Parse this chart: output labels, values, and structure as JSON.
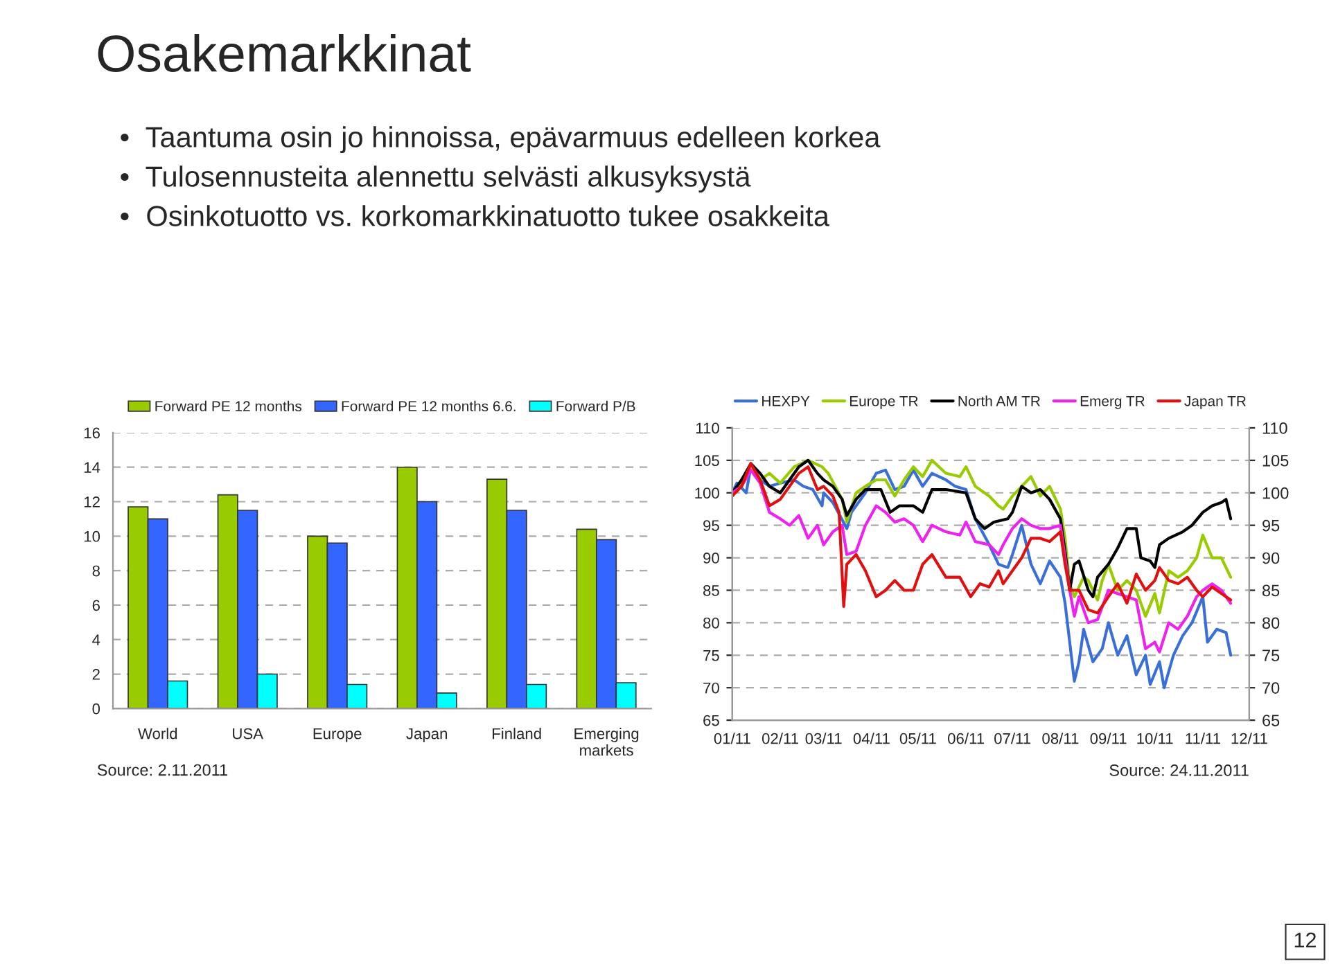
{
  "chart_data": [
    {
      "type": "bar",
      "title": "Osakemarkkinat",
      "subtitle": "•  Taantuma osin jo hinnoissa, epävarmuus edelleen korkea\n•  Tulosennusteita alennettu selvästi alkusyksystä\n•  Osinkotuotto vs. korkomarkkinatuotto tukee osakkeita",
      "categories": [
        "World",
        "USA",
        "Europe",
        "Japan",
        "Finland",
        "Emerging\nmarkets"
      ],
      "series": [
        {
          "name": "Forward PE 12 months",
          "color": "#99cc00",
          "values": [
            11.7,
            12.4,
            10.0,
            14.0,
            13.3,
            10.4
          ]
        },
        {
          "name": "Forward PE 12 months 6.6.",
          "color": "#3366ff",
          "values": [
            11.0,
            11.5,
            9.6,
            12.0,
            11.5,
            9.8
          ]
        },
        {
          "name": "Forward P/B",
          "color": "#00ffff",
          "values": [
            1.6,
            2.0,
            1.4,
            0.9,
            1.4,
            1.5
          ]
        }
      ],
      "ylim": [
        0,
        16
      ],
      "yticks": [
        0,
        2,
        4,
        6,
        8,
        10,
        12,
        14,
        16
      ],
      "grid": "y",
      "legend": "top",
      "annotations": [
        "Source: 2.11.2011"
      ]
    },
    {
      "type": "line",
      "series": [
        {
          "name": "HEXPY",
          "color": "#3a6fd8",
          "x": [
            "2011-01-01",
            "2011-01-04",
            "2011-01-10",
            "2011-01-13",
            "2011-01-19",
            "2011-01-25",
            "2011-02-01",
            "2011-02-10",
            "2011-02-16",
            "2011-02-22",
            "2011-02-28",
            "2011-03-01",
            "2011-03-07",
            "2011-03-16",
            "2011-03-19",
            "2011-03-28",
            "2011-04-04",
            "2011-04-10",
            "2011-04-16",
            "2011-04-22",
            "2011-04-28",
            "2011-05-04",
            "2011-05-10",
            "2011-05-19",
            "2011-05-25",
            "2011-06-01",
            "2011-06-07",
            "2011-06-16",
            "2011-06-22",
            "2011-06-28",
            "2011-07-01",
            "2011-07-07",
            "2011-07-13",
            "2011-07-19",
            "2011-07-25",
            "2011-08-01",
            "2011-08-04",
            "2011-08-07",
            "2011-08-10",
            "2011-08-13",
            "2011-08-16",
            "2011-08-22",
            "2011-08-28",
            "2011-09-01",
            "2011-09-07",
            "2011-09-13",
            "2011-09-19",
            "2011-09-25",
            "2011-09-28",
            "2011-10-04",
            "2011-10-07",
            "2011-10-13",
            "2011-10-19",
            "2011-10-25",
            "2011-11-01",
            "2011-11-04",
            "2011-11-10",
            "2011-11-16",
            "2011-11-19"
          ],
          "values": [
            100,
            101.5,
            100,
            104,
            102,
            101,
            101.5,
            102,
            101,
            100.5,
            98,
            100,
            98.5,
            94.5,
            97,
            100,
            103,
            103.5,
            100.5,
            101,
            103.5,
            101,
            103,
            102,
            101,
            100.5,
            96,
            92,
            89,
            88.5,
            90.5,
            95,
            89,
            86,
            89.5,
            87,
            83,
            77,
            71,
            74,
            79,
            74,
            76,
            80,
            75,
            78,
            72,
            75,
            70.5,
            74,
            70,
            75,
            78,
            80,
            84,
            77,
            79,
            78.5,
            75
          ]
        },
        {
          "name": "Europe TR",
          "color": "#99cc00",
          "x": [
            "2011-01-01",
            "2011-01-07",
            "2011-01-13",
            "2011-01-19",
            "2011-01-25",
            "2011-02-01",
            "2011-02-10",
            "2011-02-19",
            "2011-02-28",
            "2011-03-04",
            "2011-03-13",
            "2011-03-16",
            "2011-03-22",
            "2011-03-28",
            "2011-04-04",
            "2011-04-10",
            "2011-04-16",
            "2011-04-22",
            "2011-04-28",
            "2011-05-04",
            "2011-05-10",
            "2011-05-19",
            "2011-05-28",
            "2011-06-01",
            "2011-06-07",
            "2011-06-16",
            "2011-06-22",
            "2011-06-25",
            "2011-07-01",
            "2011-07-07",
            "2011-07-13",
            "2011-07-19",
            "2011-07-25",
            "2011-08-01",
            "2011-08-04",
            "2011-08-07",
            "2011-08-10",
            "2011-08-16",
            "2011-08-19",
            "2011-08-25",
            "2011-08-28",
            "2011-09-01",
            "2011-09-07",
            "2011-09-13",
            "2011-09-19",
            "2011-09-25",
            "2011-10-01",
            "2011-10-04",
            "2011-10-10",
            "2011-10-16",
            "2011-10-22",
            "2011-10-28",
            "2011-11-01",
            "2011-11-07",
            "2011-11-13",
            "2011-11-19"
          ],
          "values": [
            99.5,
            101.5,
            104,
            102,
            103,
            101.5,
            104,
            105,
            104,
            103,
            99,
            95.5,
            100,
            101,
            102,
            102,
            99.5,
            102,
            104,
            102.5,
            105,
            103,
            102.5,
            104,
            101,
            99.5,
            98,
            97.5,
            99.5,
            101,
            102.5,
            99.5,
            101,
            97.5,
            93,
            86,
            84,
            87,
            86.5,
            83.5,
            86.5,
            89,
            85,
            86.5,
            85,
            81,
            84.5,
            81.5,
            88,
            87,
            88,
            90,
            93.5,
            90,
            90,
            87
          ]
        },
        {
          "name": "North AM TR",
          "color": "#000000",
          "x": [
            "2011-01-01",
            "2011-01-07",
            "2011-01-13",
            "2011-01-19",
            "2011-01-25",
            "2011-02-01",
            "2011-02-07",
            "2011-02-13",
            "2011-02-19",
            "2011-02-25",
            "2011-03-01",
            "2011-03-07",
            "2011-03-13",
            "2011-03-16",
            "2011-03-22",
            "2011-03-28",
            "2011-04-07",
            "2011-04-13",
            "2011-04-19",
            "2011-04-28",
            "2011-05-04",
            "2011-05-10",
            "2011-05-19",
            "2011-06-01",
            "2011-06-07",
            "2011-06-13",
            "2011-06-19",
            "2011-06-28",
            "2011-07-01",
            "2011-07-07",
            "2011-07-13",
            "2011-07-19",
            "2011-07-25",
            "2011-08-01",
            "2011-08-04",
            "2011-08-07",
            "2011-08-10",
            "2011-08-13",
            "2011-08-19",
            "2011-08-22",
            "2011-08-25",
            "2011-09-01",
            "2011-09-07",
            "2011-09-13",
            "2011-09-19",
            "2011-09-22",
            "2011-09-28",
            "2011-10-01",
            "2011-10-04",
            "2011-10-10",
            "2011-10-19",
            "2011-10-25",
            "2011-11-01",
            "2011-11-07",
            "2011-11-13",
            "2011-11-16",
            "2011-11-19"
          ],
          "values": [
            100,
            102,
            104.5,
            103,
            101,
            100,
            102,
            104,
            105,
            103,
            102,
            101,
            99,
            96.5,
            99,
            100.5,
            100.5,
            97,
            98,
            98,
            97,
            100.5,
            100.5,
            100,
            96,
            94.5,
            95.5,
            96,
            97,
            101,
            100,
            100.5,
            99,
            96,
            91,
            85,
            89,
            89.5,
            85,
            84,
            87,
            89,
            91.5,
            94.5,
            94.5,
            90,
            89.5,
            88.5,
            92,
            93,
            94,
            95,
            97,
            98,
            98.5,
            99,
            96
          ]
        },
        {
          "name": "Emerg TR",
          "color": "#ee22ee",
          "x": [
            "2011-01-01",
            "2011-01-07",
            "2011-01-13",
            "2011-01-19",
            "2011-01-25",
            "2011-02-01",
            "2011-02-07",
            "2011-02-13",
            "2011-02-19",
            "2011-02-25",
            "2011-03-01",
            "2011-03-07",
            "2011-03-13",
            "2011-03-16",
            "2011-03-22",
            "2011-03-28",
            "2011-04-04",
            "2011-04-10",
            "2011-04-16",
            "2011-04-22",
            "2011-04-28",
            "2011-05-04",
            "2011-05-10",
            "2011-05-19",
            "2011-05-28",
            "2011-06-01",
            "2011-06-07",
            "2011-06-16",
            "2011-06-22",
            "2011-06-25",
            "2011-07-01",
            "2011-07-07",
            "2011-07-13",
            "2011-07-19",
            "2011-07-25",
            "2011-08-01",
            "2011-08-04",
            "2011-08-07",
            "2011-08-10",
            "2011-08-13",
            "2011-08-19",
            "2011-08-25",
            "2011-09-01",
            "2011-09-07",
            "2011-09-13",
            "2011-09-19",
            "2011-09-25",
            "2011-10-01",
            "2011-10-04",
            "2011-10-10",
            "2011-10-16",
            "2011-10-22",
            "2011-10-28",
            "2011-11-01",
            "2011-11-07",
            "2011-11-13",
            "2011-11-19"
          ],
          "values": [
            100,
            101,
            103.5,
            101.5,
            97,
            96,
            95,
            96.5,
            93,
            95,
            92,
            94,
            95,
            90.5,
            91,
            95,
            98,
            97,
            95.5,
            96,
            95,
            92.5,
            95,
            94,
            93.5,
            95.5,
            92.5,
            92,
            90.5,
            92,
            94.5,
            96,
            95,
            94.5,
            94.5,
            95,
            90,
            85,
            81,
            84,
            80,
            80.5,
            85,
            84.5,
            84,
            83.5,
            76,
            77,
            75.5,
            80,
            79,
            81,
            84,
            85,
            86,
            85,
            83
          ]
        },
        {
          "name": "Japan TR",
          "color": "#e01010",
          "x": [
            "2011-01-01",
            "2011-01-07",
            "2011-01-13",
            "2011-01-19",
            "2011-01-25",
            "2011-02-01",
            "2011-02-07",
            "2011-02-13",
            "2011-02-19",
            "2011-02-25",
            "2011-03-01",
            "2011-03-07",
            "2011-03-11",
            "2011-03-14",
            "2011-03-16",
            "2011-03-22",
            "2011-03-28",
            "2011-04-04",
            "2011-04-10",
            "2011-04-16",
            "2011-04-22",
            "2011-04-28",
            "2011-05-04",
            "2011-05-10",
            "2011-05-19",
            "2011-05-28",
            "2011-06-04",
            "2011-06-10",
            "2011-06-16",
            "2011-06-22",
            "2011-06-25",
            "2011-07-01",
            "2011-07-07",
            "2011-07-13",
            "2011-07-19",
            "2011-07-25",
            "2011-08-01",
            "2011-08-04",
            "2011-08-07",
            "2011-08-13",
            "2011-08-19",
            "2011-08-25",
            "2011-09-01",
            "2011-09-07",
            "2011-09-13",
            "2011-09-19",
            "2011-09-25",
            "2011-10-01",
            "2011-10-04",
            "2011-10-10",
            "2011-10-16",
            "2011-10-22",
            "2011-10-28",
            "2011-11-01",
            "2011-11-07",
            "2011-11-13",
            "2011-11-19"
          ],
          "values": [
            99.5,
            101,
            104.5,
            102,
            98,
            99,
            101,
            103,
            104,
            100.5,
            101,
            99.5,
            97,
            82.5,
            89,
            90.5,
            88,
            84,
            85,
            86.5,
            85,
            85,
            89,
            90.5,
            87,
            87,
            84,
            86,
            85.5,
            88,
            86,
            88,
            90,
            93,
            93,
            92.5,
            94,
            89,
            85,
            85,
            82,
            81.5,
            84,
            86,
            83,
            87.5,
            85,
            86.5,
            88.5,
            86.5,
            86,
            87,
            85,
            84,
            85.5,
            84.5,
            83.5
          ]
        }
      ],
      "xlim": [
        "2011-01-01",
        "2011-12-01"
      ],
      "xticks": [
        {
          "value": "2011-01-01",
          "label": "01/11"
        },
        {
          "value": "2011-02-01",
          "label": "02/11"
        },
        {
          "value": "2011-03-01",
          "label": "03/11"
        },
        {
          "value": "2011-04-01",
          "label": "04/11"
        },
        {
          "value": "2011-05-01",
          "label": "05/11"
        },
        {
          "value": "2011-06-01",
          "label": "06/11"
        },
        {
          "value": "2011-07-01",
          "label": "07/11"
        },
        {
          "value": "2011-08-01",
          "label": "08/11"
        },
        {
          "value": "2011-09-01",
          "label": "09/11"
        },
        {
          "value": "2011-10-01",
          "label": "10/11"
        },
        {
          "value": "2011-11-01",
          "label": "11/11"
        },
        {
          "value": "2011-12-01",
          "label": "12/11"
        }
      ],
      "ylim": [
        65,
        110
      ],
      "yticks": [
        65,
        70,
        75,
        80,
        85,
        90,
        95,
        100,
        105,
        110
      ],
      "y2lim": [
        65,
        110
      ],
      "y2ticks": [
        65,
        70,
        75,
        80,
        85,
        90,
        95,
        100,
        105,
        110
      ],
      "grid": "y",
      "legend": "top",
      "line_style": "solid",
      "marker": "none",
      "annotations": [
        "Source: 24.11.2011",
        "12"
      ]
    }
  ]
}
